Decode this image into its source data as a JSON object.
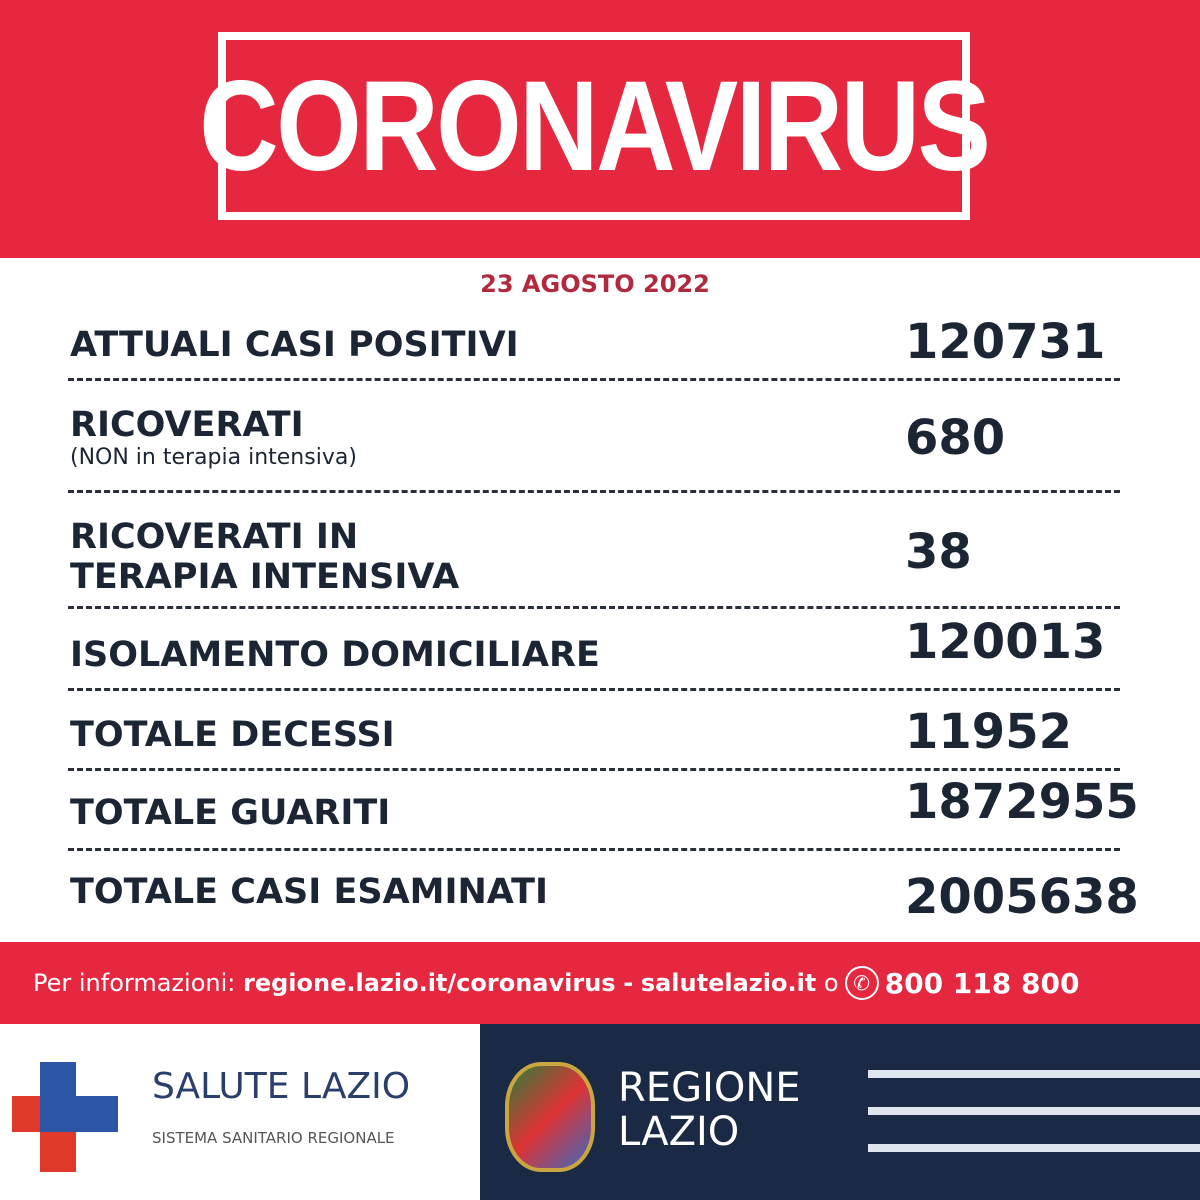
{
  "header": {
    "title": "CORONAVIRUS",
    "date": "23 AGOSTO 2022"
  },
  "rows": [
    {
      "label": "ATTUALI CASI POSITIVI",
      "value": "120731"
    },
    {
      "label": "RICOVERATI",
      "sublabel": "(NON in terapia intensiva)",
      "value": "680"
    },
    {
      "label_line1": "RICOVERATI IN",
      "label_line2": "TERAPIA INTENSIVA",
      "value": "38"
    },
    {
      "label": "ISOLAMENTO DOMICILIARE",
      "value": "120013"
    },
    {
      "label": "TOTALE DECESSI",
      "value": "11952"
    },
    {
      "label": "TOTALE GUARITI",
      "value": "1872955"
    },
    {
      "label": "TOTALE CASI ESAMINATI",
      "value": "2005638"
    }
  ],
  "info": {
    "prefix": "Per informazioni:",
    "link1": "regione.lazio.it/coronavirus",
    "sep": "-",
    "link2": "salutelazio.it",
    "or": "o",
    "phone": "800 118 800"
  },
  "footer": {
    "salute_title": "SALUTE LAZIO",
    "salute_sub": "SISTEMA SANITARIO REGIONALE",
    "regione_line1": "REGIONE",
    "regione_line2": "LAZIO"
  },
  "colors": {
    "red": "#e5283f",
    "navy": "#1b2a44",
    "text": "#1c2533",
    "date": "#b02a3e"
  }
}
